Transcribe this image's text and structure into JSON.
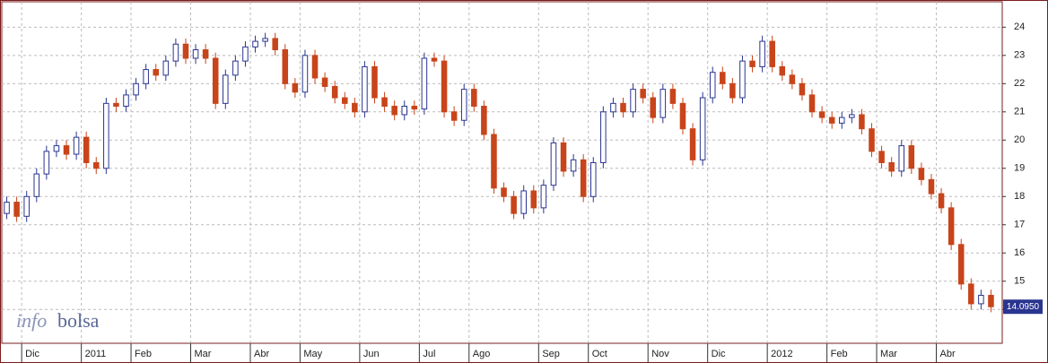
{
  "chart_data": {
    "type": "candlestick",
    "watermark": [
      "info",
      "bolsa"
    ],
    "series": {
      "up_color": "#2a3590",
      "down_color": "#c8441a",
      "open": [
        17.4,
        17.8,
        17.3,
        18.0,
        18.8,
        19.6,
        19.8,
        19.5,
        20.1,
        19.2,
        19.0,
        21.3,
        21.2,
        21.6,
        22.0,
        22.5,
        22.3,
        22.8,
        23.4,
        22.9,
        23.2,
        22.9,
        21.3,
        22.3,
        22.8,
        23.3,
        23.5,
        23.6,
        23.2,
        22.0,
        21.7,
        23.0,
        22.2,
        21.9,
        21.5,
        21.3,
        21.0,
        22.6,
        21.5,
        21.2,
        20.9,
        21.2,
        21.1,
        22.9,
        22.8,
        21.0,
        20.7,
        21.8,
        21.2,
        20.2,
        18.3,
        18.0,
        17.4,
        18.2,
        17.6,
        18.4,
        19.9,
        18.9,
        19.3,
        18.0,
        19.2,
        21.0,
        21.3,
        21.0,
        21.8,
        21.5,
        20.8,
        21.8,
        21.3,
        20.4,
        19.3,
        21.5,
        22.4,
        22.0,
        21.5,
        22.8,
        22.6,
        23.5,
        22.6,
        22.3,
        22.0,
        21.6,
        21.0,
        20.8,
        20.6,
        20.8,
        20.9,
        20.4,
        19.6,
        19.2,
        18.9,
        19.8,
        19.0,
        18.6,
        18.1,
        17.6,
        16.3,
        14.9,
        14.2,
        14.5
      ],
      "high": [
        18.0,
        18.0,
        18.2,
        19.0,
        19.8,
        20.0,
        20.0,
        20.3,
        20.3,
        19.4,
        21.5,
        21.5,
        21.8,
        22.2,
        22.7,
        22.7,
        23.0,
        23.6,
        23.6,
        23.4,
        23.4,
        23.1,
        22.5,
        23.0,
        23.5,
        23.7,
        23.8,
        23.8,
        23.4,
        22.2,
        23.2,
        23.2,
        22.4,
        22.1,
        21.7,
        21.5,
        22.8,
        22.8,
        21.7,
        21.4,
        21.4,
        21.4,
        23.1,
        23.1,
        23.0,
        21.2,
        22.0,
        22.0,
        21.4,
        20.4,
        18.5,
        18.2,
        18.4,
        18.4,
        18.6,
        20.1,
        20.1,
        19.5,
        19.5,
        19.4,
        21.2,
        21.5,
        21.5,
        22.0,
        22.0,
        21.7,
        22.0,
        22.0,
        21.5,
        20.6,
        21.7,
        22.6,
        22.6,
        22.2,
        23.0,
        23.0,
        23.7,
        23.7,
        22.8,
        22.5,
        22.2,
        21.8,
        21.2,
        21.0,
        21.0,
        21.1,
        21.1,
        20.6,
        19.8,
        19.4,
        20.0,
        20.0,
        19.2,
        18.8,
        18.3,
        17.8,
        16.5,
        15.1,
        14.7,
        14.7
      ],
      "low": [
        17.2,
        17.1,
        17.1,
        17.8,
        18.6,
        19.4,
        19.3,
        19.3,
        19.0,
        18.8,
        18.8,
        21.0,
        21.0,
        21.4,
        21.8,
        22.1,
        22.1,
        22.6,
        22.7,
        22.7,
        22.7,
        21.1,
        21.1,
        22.1,
        22.6,
        23.1,
        23.3,
        23.0,
        21.8,
        21.5,
        21.5,
        22.0,
        21.7,
        21.3,
        21.1,
        20.8,
        20.8,
        21.3,
        21.0,
        20.7,
        20.7,
        20.9,
        20.9,
        22.6,
        20.8,
        20.5,
        20.5,
        21.0,
        20.0,
        18.1,
        17.8,
        17.2,
        17.2,
        17.4,
        17.4,
        18.2,
        18.7,
        18.7,
        17.8,
        17.8,
        19.0,
        20.8,
        20.8,
        20.8,
        21.3,
        20.6,
        20.6,
        21.1,
        20.2,
        19.1,
        19.1,
        21.3,
        21.8,
        21.3,
        21.3,
        22.4,
        22.4,
        22.4,
        22.1,
        21.8,
        21.4,
        20.8,
        20.6,
        20.4,
        20.4,
        20.6,
        20.2,
        19.4,
        19.0,
        18.7,
        18.7,
        18.8,
        18.4,
        17.9,
        17.4,
        16.1,
        14.7,
        14.0,
        14.0,
        13.9
      ],
      "close": [
        17.8,
        17.3,
        18.0,
        18.8,
        19.6,
        19.8,
        19.5,
        20.1,
        19.2,
        19.0,
        21.3,
        21.2,
        21.6,
        22.0,
        22.5,
        22.3,
        22.8,
        23.4,
        22.9,
        23.2,
        22.9,
        21.3,
        22.3,
        22.8,
        23.3,
        23.5,
        23.6,
        23.2,
        22.0,
        21.7,
        23.0,
        22.2,
        21.9,
        21.5,
        21.3,
        21.0,
        22.6,
        21.5,
        21.2,
        20.9,
        21.2,
        21.1,
        22.9,
        22.8,
        21.0,
        20.7,
        21.8,
        21.2,
        20.2,
        18.3,
        18.0,
        17.4,
        18.2,
        17.6,
        18.4,
        19.9,
        18.9,
        19.3,
        18.0,
        19.2,
        21.0,
        21.3,
        21.0,
        21.8,
        21.5,
        20.8,
        21.8,
        21.3,
        20.4,
        19.3,
        21.5,
        22.4,
        22.0,
        21.5,
        22.8,
        22.6,
        23.5,
        22.6,
        22.3,
        22.0,
        21.6,
        21.0,
        20.8,
        20.6,
        20.8,
        20.9,
        20.4,
        19.6,
        19.2,
        18.9,
        19.8,
        19.0,
        18.6,
        18.1,
        17.6,
        16.3,
        14.9,
        14.2,
        14.5,
        14.095
      ]
    },
    "last_price": {
      "value": 14.095,
      "label": "14.0950"
    },
    "ylim": [
      12.8,
      24.9
    ],
    "yticks": [
      14,
      15,
      16,
      17,
      18,
      19,
      20,
      21,
      22,
      23,
      24
    ],
    "xlim": [
      0,
      100
    ],
    "xticks": [
      {
        "value": 2,
        "label": "Dic"
      },
      {
        "value": 8,
        "label": "2011"
      },
      {
        "value": 13,
        "label": "Feb"
      },
      {
        "value": 19,
        "label": "Mar"
      },
      {
        "value": 25,
        "label": "Abr"
      },
      {
        "value": 30,
        "label": "May"
      },
      {
        "value": 36,
        "label": "Jun"
      },
      {
        "value": 42,
        "label": "Jul"
      },
      {
        "value": 47,
        "label": "Ago"
      },
      {
        "value": 54,
        "label": "Sep"
      },
      {
        "value": 59,
        "label": "Oct"
      },
      {
        "value": 65,
        "label": "Nov"
      },
      {
        "value": 71,
        "label": "Dic"
      },
      {
        "value": 77,
        "label": "2012"
      },
      {
        "value": 83,
        "label": "Feb"
      },
      {
        "value": 88,
        "label": "Mar"
      },
      {
        "value": 94,
        "label": "Abr"
      }
    ],
    "grid": true
  }
}
